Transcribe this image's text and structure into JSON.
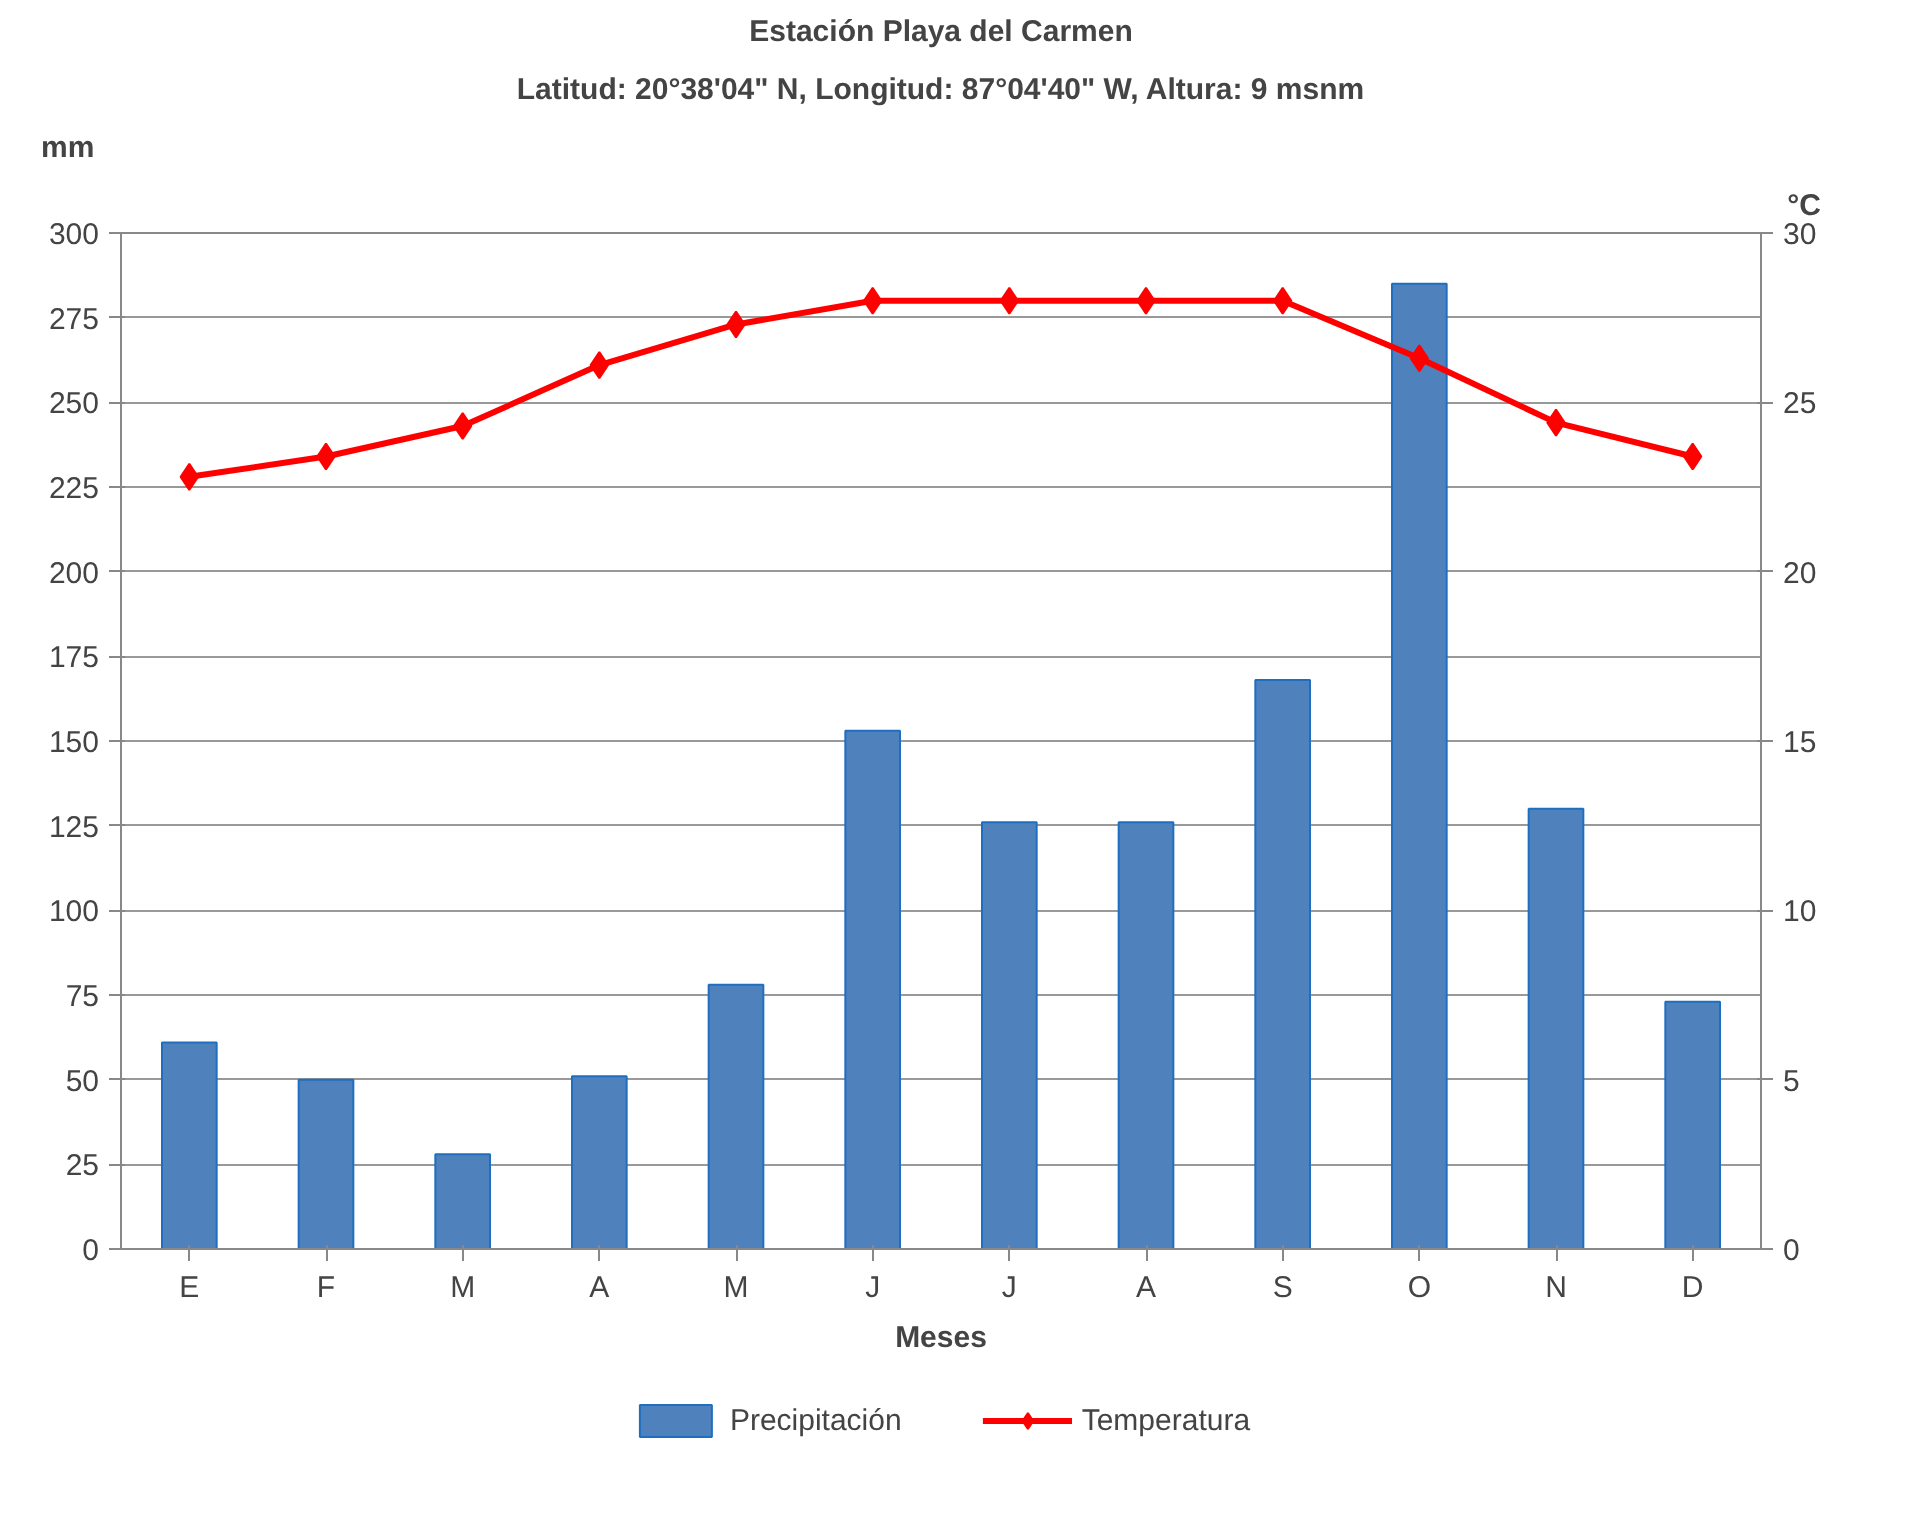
{
  "chart_data": {
    "type": "bar",
    "title": "Estación Playa del Carmen",
    "subtitle": "Latitud: 20°38'04\" N, Longitud: 87°04'40\" W, Altura: 9 msnm",
    "xlabel": "Meses",
    "ylabel": "mm",
    "y2label": "°C",
    "categories": [
      "E",
      "F",
      "M",
      "A",
      "M",
      "J",
      "J",
      "A",
      "S",
      "O",
      "N",
      "D"
    ],
    "series": [
      {
        "name": "Precipitación",
        "color": "#4f81bd",
        "values": [
          61,
          50,
          28,
          51,
          78,
          153,
          126,
          126,
          168,
          285,
          130,
          73
        ]
      },
      {
        "name": "Temperatura",
        "type": "line",
        "axis": "y2",
        "color": "#ff0000",
        "marker": "diamond",
        "values": [
          22.8,
          23.4,
          24.3,
          26.1,
          27.3,
          28.0,
          28.0,
          28.0,
          28.0,
          26.3,
          24.4,
          23.4
        ]
      }
    ],
    "ylim": [
      0,
      300
    ],
    "yticks": [
      0,
      25,
      50,
      75,
      100,
      125,
      150,
      175,
      200,
      225,
      250,
      275,
      300
    ],
    "y2lim": [
      0,
      30
    ],
    "y2ticks": [
      0,
      5,
      10,
      15,
      20,
      25,
      30
    ],
    "grid": "y",
    "legend": "bottom"
  }
}
